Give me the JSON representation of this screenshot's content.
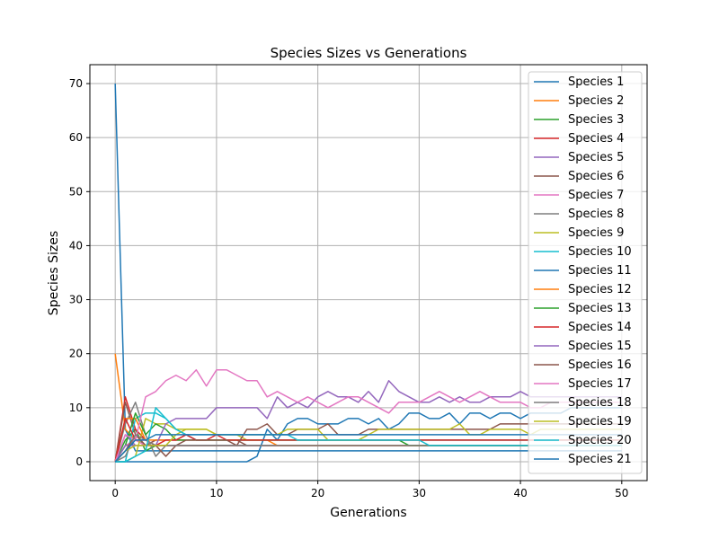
{
  "chart_data": {
    "type": "line",
    "title": "Species Sizes vs Generations",
    "xlabel": "Generations",
    "ylabel": "Species Sizes",
    "xlim": [
      -2.5,
      52.5
    ],
    "ylim": [
      -3.5,
      73.5
    ],
    "xticks": [
      0,
      10,
      20,
      30,
      40,
      50
    ],
    "yticks": [
      0,
      10,
      20,
      30,
      40,
      50,
      60,
      70
    ],
    "xtick_labels": [
      "0",
      "10",
      "20",
      "30",
      "40",
      "50"
    ],
    "ytick_labels": [
      "0",
      "10",
      "20",
      "30",
      "40",
      "50",
      "60",
      "70"
    ],
    "grid": true,
    "legend_position": "upper-right",
    "series": [
      {
        "name": "Species 1",
        "color": "#1f77b4",
        "start": 0,
        "values": [
          70,
          6,
          2,
          2,
          2,
          2,
          2,
          2,
          2,
          2,
          2,
          2,
          2,
          2,
          2,
          2,
          2,
          2,
          2,
          2,
          2,
          2,
          2,
          2,
          2,
          2,
          2,
          2,
          2,
          2,
          2,
          2,
          2,
          2,
          2,
          2,
          2,
          2,
          2,
          2,
          2,
          2,
          2,
          2,
          2,
          2,
          2,
          2,
          2,
          2,
          2
        ]
      },
      {
        "name": "Species 2",
        "color": "#ff7f0e",
        "start": 0,
        "values": [
          20,
          6,
          4,
          3,
          3,
          3,
          3,
          3,
          3,
          3,
          3,
          3,
          3,
          3,
          3,
          3,
          3,
          3,
          3,
          3,
          3,
          3,
          3,
          3,
          3,
          3,
          3,
          3,
          3,
          3,
          3,
          3,
          3,
          3,
          3,
          3,
          3,
          3,
          3,
          3,
          3,
          3,
          3,
          3,
          3,
          3,
          3,
          3,
          3,
          3,
          3
        ]
      },
      {
        "name": "Species 3",
        "color": "#2ca02c",
        "start": 0,
        "values": [
          0,
          4,
          6,
          2,
          3,
          3,
          3,
          3,
          3,
          3,
          3,
          3,
          3,
          3,
          3,
          3,
          3,
          3,
          3,
          3,
          3,
          3,
          3,
          3,
          3,
          3,
          3,
          3,
          3,
          3,
          3,
          3,
          3,
          3,
          3,
          3,
          3,
          3,
          3,
          3,
          3,
          3,
          3,
          3,
          3,
          3,
          3,
          3,
          3,
          3,
          3
        ]
      },
      {
        "name": "Species 4",
        "color": "#d62728",
        "start": 0,
        "values": [
          0,
          12,
          6,
          4,
          3,
          3,
          3,
          3,
          3,
          3,
          3,
          3,
          3,
          3,
          3,
          3,
          3,
          3,
          3,
          3,
          3,
          3,
          3,
          3,
          3,
          3,
          3,
          3,
          3,
          3,
          3,
          3,
          3,
          3,
          3,
          3,
          3,
          3,
          3,
          3,
          3,
          3,
          3,
          3,
          3,
          3,
          3,
          3,
          3,
          3,
          3
        ]
      },
      {
        "name": "Species 5",
        "color": "#9467bd",
        "start": 0,
        "values": [
          0,
          5,
          3,
          3,
          4,
          4,
          4,
          4,
          4,
          4,
          4,
          4,
          4,
          4,
          4,
          4,
          4,
          4,
          4,
          4,
          4,
          4,
          4,
          4,
          4,
          4,
          4,
          4,
          4,
          4,
          4,
          4,
          4,
          4,
          4,
          4,
          4,
          4,
          4,
          4,
          4,
          4,
          4,
          4,
          4,
          4,
          4,
          4,
          4,
          4,
          4
        ]
      },
      {
        "name": "Species 6",
        "color": "#8c564b",
        "start": 0,
        "values": [
          0,
          11,
          5,
          3,
          4,
          4,
          4,
          5,
          4,
          4,
          4,
          4,
          4,
          3,
          3,
          3,
          3,
          3,
          3,
          3,
          3,
          3,
          3,
          3,
          3,
          3,
          3,
          3,
          3,
          3,
          3,
          3,
          3,
          3,
          3,
          3,
          3,
          3,
          3,
          3,
          3,
          3,
          3,
          3,
          3,
          3,
          3,
          3,
          3,
          3,
          3
        ]
      },
      {
        "name": "Species 7",
        "color": "#e377c2",
        "start": 0,
        "values": [
          0,
          3,
          4,
          3,
          3,
          3,
          3,
          3,
          3,
          3,
          3,
          3,
          3,
          3,
          3,
          3,
          3,
          3,
          3,
          3,
          3,
          3,
          3,
          3,
          3,
          3,
          3,
          3,
          3,
          3,
          3,
          3,
          3,
          3,
          3,
          3,
          3,
          3,
          3,
          3,
          3,
          3,
          3,
          3,
          3,
          3,
          3,
          3,
          3,
          3,
          3
        ]
      },
      {
        "name": "Species 8",
        "color": "#7f7f7f",
        "start": 0,
        "values": [
          0,
          7,
          11,
          5,
          1,
          3,
          3,
          3,
          3,
          3,
          3,
          3,
          3,
          3,
          3,
          3,
          3,
          3,
          3,
          3,
          3,
          3,
          3,
          3,
          3,
          3,
          3,
          3,
          3,
          3,
          3,
          3,
          3,
          3,
          3,
          3,
          3,
          3,
          3,
          3,
          3,
          3,
          3,
          3,
          3,
          3,
          3,
          3,
          3,
          3,
          3
        ]
      },
      {
        "name": "Species 9",
        "color": "#bcbd22",
        "start": 0,
        "values": [
          0,
          0,
          1,
          8,
          7,
          7,
          6,
          6,
          6,
          6,
          5,
          5,
          5,
          4,
          4,
          4,
          4,
          4,
          4,
          4,
          4,
          4,
          4,
          4,
          4,
          4,
          4,
          4,
          4,
          4,
          4,
          4,
          4,
          4,
          4,
          4,
          4,
          4,
          4,
          4,
          4,
          4,
          4,
          4,
          4,
          4,
          4,
          4,
          4,
          4,
          4
        ]
      },
      {
        "name": "Species 10",
        "color": "#17becf",
        "start": 0,
        "values": [
          0,
          0,
          8,
          9,
          9,
          8,
          6,
          5,
          4,
          4,
          4,
          4,
          4,
          4,
          4,
          4,
          4,
          4,
          4,
          4,
          4,
          4,
          4,
          4,
          4,
          4,
          4,
          4,
          4,
          4,
          4,
          4,
          4,
          4,
          4,
          4,
          4,
          4,
          4,
          4,
          4,
          4,
          4,
          4,
          4,
          4,
          4,
          4,
          4,
          4,
          4
        ]
      },
      {
        "name": "Species 11",
        "color": "#1f77b4",
        "start": 0,
        "values": [
          0,
          0,
          0,
          0,
          0,
          0,
          0,
          0,
          0,
          0,
          0,
          0,
          0,
          0,
          1,
          6,
          4,
          7,
          8,
          8,
          7,
          7,
          7,
          8,
          8,
          7,
          8,
          6,
          7,
          9,
          9,
          8,
          8,
          9,
          7,
          9,
          9,
          8,
          9,
          9,
          8,
          9,
          9,
          9,
          9,
          10,
          10,
          10,
          10,
          10,
          10
        ]
      },
      {
        "name": "Species 12",
        "color": "#ff7f0e",
        "start": 0,
        "values": [
          0,
          8,
          8,
          4,
          4,
          4,
          4,
          4,
          4,
          4,
          4,
          4,
          4,
          4,
          4,
          4,
          3,
          3,
          3,
          3,
          3,
          3,
          3,
          3,
          3,
          3,
          3,
          3,
          3,
          3,
          3,
          3,
          3,
          3,
          3,
          3,
          3,
          3,
          3,
          3,
          3,
          3,
          3,
          3,
          3,
          3,
          3,
          3,
          3,
          3,
          3
        ]
      },
      {
        "name": "Species 13",
        "color": "#2ca02c",
        "start": 0,
        "values": [
          0,
          3,
          9,
          5,
          7,
          6,
          4,
          4,
          4,
          4,
          4,
          4,
          4,
          4,
          4,
          4,
          4,
          4,
          4,
          4,
          4,
          4,
          4,
          4,
          4,
          4,
          4,
          4,
          4,
          3,
          3,
          3,
          3,
          3,
          3,
          3,
          3,
          3,
          3,
          3,
          3,
          3,
          3,
          3,
          3,
          3,
          3,
          3,
          3,
          3,
          3
        ]
      },
      {
        "name": "Species 14",
        "color": "#d62728",
        "start": 0,
        "values": [
          0,
          8,
          4,
          4,
          3,
          4,
          4,
          5,
          4,
          4,
          5,
          4,
          4,
          4,
          4,
          4,
          4,
          4,
          4,
          4,
          4,
          4,
          4,
          4,
          4,
          4,
          4,
          4,
          4,
          4,
          4,
          4,
          4,
          4,
          4,
          4,
          4,
          4,
          4,
          4,
          4,
          4,
          4,
          4,
          4,
          4,
          4,
          4,
          4,
          4,
          4
        ]
      },
      {
        "name": "Species 15",
        "color": "#9467bd",
        "start": 0,
        "values": [
          0,
          3,
          3,
          3,
          3,
          7,
          8,
          8,
          8,
          8,
          10,
          10,
          10,
          10,
          10,
          8,
          12,
          10,
          11,
          10,
          12,
          13,
          12,
          12,
          11,
          13,
          11,
          15,
          13,
          12,
          11,
          11,
          12,
          11,
          12,
          11,
          11,
          12,
          12,
          12,
          13,
          12,
          12,
          12,
          12,
          12,
          12,
          12,
          12,
          12,
          12
        ]
      },
      {
        "name": "Species 16",
        "color": "#8c564b",
        "start": 0,
        "values": [
          0,
          2,
          5,
          3,
          3,
          1,
          3,
          4,
          4,
          4,
          4,
          4,
          3,
          6,
          6,
          7,
          5,
          5,
          6,
          6,
          6,
          7,
          5,
          5,
          5,
          6,
          6,
          6,
          6,
          6,
          6,
          6,
          6,
          6,
          6,
          6,
          6,
          6,
          7,
          7,
          7,
          7,
          7,
          7,
          7,
          7,
          7,
          7,
          7,
          7,
          7
        ]
      },
      {
        "name": "Species 17",
        "color": "#e377c2",
        "start": 0,
        "values": [
          0,
          5,
          4,
          12,
          13,
          15,
          16,
          15,
          17,
          14,
          17,
          17,
          16,
          15,
          15,
          12,
          13,
          12,
          11,
          12,
          11,
          10,
          11,
          12,
          12,
          11,
          10,
          9,
          11,
          11,
          11,
          12,
          13,
          12,
          11,
          12,
          13,
          12,
          11,
          11,
          11,
          10,
          10,
          11,
          11,
          11,
          11,
          11,
          11,
          11,
          11
        ]
      },
      {
        "name": "Species 18",
        "color": "#7f7f7f",
        "start": 0,
        "values": [
          0,
          1,
          5,
          4,
          3,
          3,
          3,
          3,
          3,
          3,
          3,
          3,
          3,
          3,
          3,
          3,
          3,
          3,
          3,
          3,
          3,
          3,
          3,
          3,
          3,
          3,
          3,
          3,
          3,
          3,
          3,
          3,
          3,
          3,
          3,
          3,
          3,
          3,
          3,
          3,
          3,
          3,
          3,
          3,
          3,
          3,
          3,
          3,
          3,
          3,
          3
        ]
      },
      {
        "name": "Species 19",
        "color": "#bcbd22",
        "start": 0,
        "values": [
          0,
          2,
          3,
          3,
          3,
          3,
          5,
          6,
          6,
          6,
          5,
          5,
          5,
          5,
          5,
          5,
          5,
          6,
          6,
          6,
          6,
          4,
          4,
          4,
          4,
          5,
          6,
          6,
          6,
          6,
          6,
          6,
          6,
          6,
          7,
          5,
          5,
          6,
          6,
          6,
          6,
          5,
          6,
          6,
          6,
          6,
          6,
          6,
          6,
          6,
          6
        ]
      },
      {
        "name": "Species 20",
        "color": "#17becf",
        "start": 0,
        "values": [
          0,
          0,
          1,
          2,
          10,
          8,
          6,
          5,
          5,
          5,
          5,
          5,
          5,
          5,
          5,
          5,
          5,
          5,
          4,
          4,
          4,
          4,
          4,
          4,
          4,
          4,
          4,
          4,
          4,
          4,
          4,
          3,
          3,
          3,
          3,
          3,
          3,
          3,
          3,
          3,
          3,
          3,
          3,
          3,
          3,
          3,
          3,
          3,
          3,
          3,
          3
        ]
      },
      {
        "name": "Species 21",
        "color": "#1f77b4",
        "start": 0,
        "values": [
          0,
          2,
          4,
          4,
          5,
          5,
          5,
          5,
          5,
          5,
          5,
          5,
          5,
          5,
          5,
          5,
          5,
          5,
          5,
          5,
          5,
          5,
          5,
          5,
          5,
          5,
          5,
          5,
          5,
          5,
          5,
          5,
          5,
          5,
          5,
          5,
          5,
          5,
          5,
          5,
          5,
          5,
          5,
          5,
          5,
          5,
          5,
          5,
          5,
          5,
          5
        ]
      }
    ]
  }
}
